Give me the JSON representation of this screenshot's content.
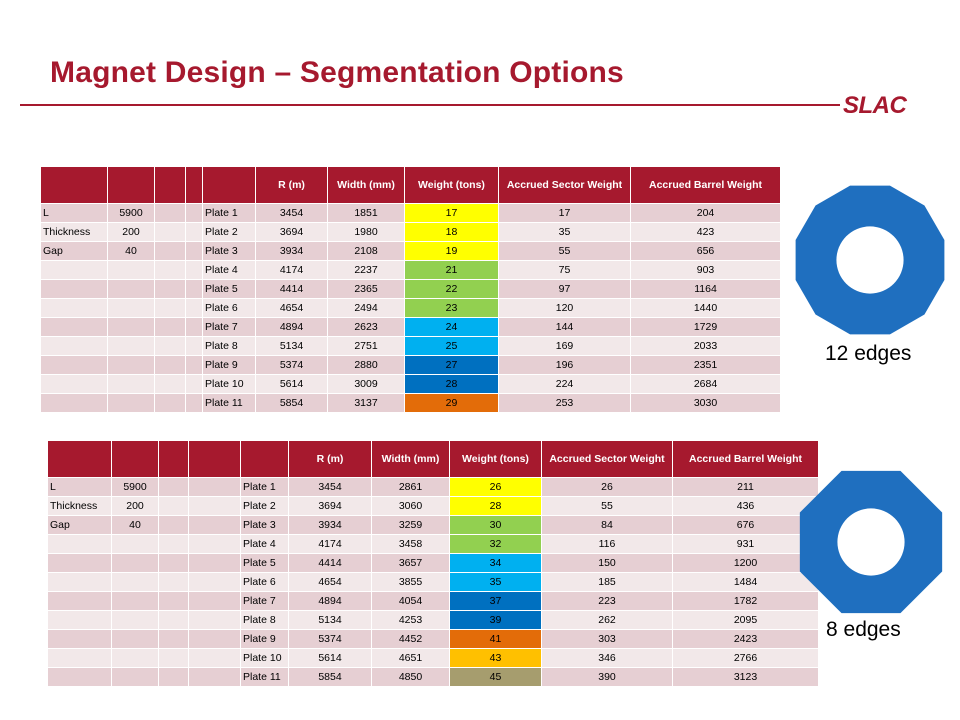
{
  "title": "Magnet Design – Segmentation Options",
  "logo": "SLAC",
  "colors": {
    "accent": "#a6192e",
    "row_odd": "#e6cfd3",
    "row_even": "#f2e8e9",
    "yellow": "#ffff00",
    "light_green": "#92d050",
    "light_blue": "#00b0f0",
    "blue": "#0070c0",
    "orange": "#e36c09",
    "amber": "#ffc000",
    "tan": "#a69d6e",
    "shape_blue": "#1f6fbf"
  },
  "headers": [
    "",
    "",
    "",
    "",
    "",
    "R (m)",
    "Width (mm)",
    "Weight (tons)",
    "Accrued  Sector Weight",
    "Accrued  Barrel Weight"
  ],
  "table12": {
    "rows": [
      [
        "L",
        "5900",
        "",
        "Plate 1",
        "3454",
        "1851",
        "17",
        "17",
        "204"
      ],
      [
        "Thickness",
        "200",
        "",
        "Plate 2",
        "3694",
        "1980",
        "18",
        "35",
        "423"
      ],
      [
        "Gap",
        "40",
        "",
        "Plate 3",
        "3934",
        "2108",
        "19",
        "55",
        "656"
      ],
      [
        "",
        "",
        "",
        "Plate 4",
        "4174",
        "2237",
        "21",
        "75",
        "903"
      ],
      [
        "",
        "",
        "",
        "Plate 5",
        "4414",
        "2365",
        "22",
        "97",
        "1164"
      ],
      [
        "",
        "",
        "",
        "Plate 6",
        "4654",
        "2494",
        "23",
        "120",
        "1440"
      ],
      [
        "",
        "",
        "",
        "Plate 7",
        "4894",
        "2623",
        "24",
        "144",
        "1729"
      ],
      [
        "",
        "",
        "",
        "Plate 8",
        "5134",
        "2751",
        "25",
        "169",
        "2033"
      ],
      [
        "",
        "",
        "",
        "Plate 9",
        "5374",
        "2880",
        "27",
        "196",
        "2351"
      ],
      [
        "",
        "",
        "",
        "Plate 10",
        "5614",
        "3009",
        "28",
        "224",
        "2684"
      ],
      [
        "",
        "",
        "",
        "Plate 11",
        "5854",
        "3137",
        "29",
        "253",
        "3030"
      ]
    ],
    "weight_colors": [
      "#ffff00",
      "#ffff00",
      "#ffff00",
      "#92d050",
      "#92d050",
      "#92d050",
      "#00b0f0",
      "#00b0f0",
      "#0070c0",
      "#0070c0",
      "#e36c09"
    ],
    "edge_label": "12 edges",
    "sides": 12
  },
  "table8": {
    "rows": [
      [
        "L",
        "5900",
        "",
        "Plate 1",
        "3454",
        "2861",
        "26",
        "26",
        "211"
      ],
      [
        "Thickness",
        "200",
        "",
        "Plate 2",
        "3694",
        "3060",
        "28",
        "55",
        "436"
      ],
      [
        "Gap",
        "40",
        "",
        "Plate 3",
        "3934",
        "3259",
        "30",
        "84",
        "676"
      ],
      [
        "",
        "",
        "",
        "Plate 4",
        "4174",
        "3458",
        "32",
        "116",
        "931"
      ],
      [
        "",
        "",
        "",
        "Plate 5",
        "4414",
        "3657",
        "34",
        "150",
        "1200"
      ],
      [
        "",
        "",
        "",
        "Plate 6",
        "4654",
        "3855",
        "35",
        "185",
        "1484"
      ],
      [
        "",
        "",
        "",
        "Plate 7",
        "4894",
        "4054",
        "37",
        "223",
        "1782"
      ],
      [
        "",
        "",
        "",
        "Plate 8",
        "5134",
        "4253",
        "39",
        "262",
        "2095"
      ],
      [
        "",
        "",
        "",
        "Plate 9",
        "5374",
        "4452",
        "41",
        "303",
        "2423"
      ],
      [
        "",
        "",
        "",
        "Plate 10",
        "5614",
        "4651",
        "43",
        "346",
        "2766"
      ],
      [
        "",
        "",
        "",
        "Plate 11",
        "5854",
        "4850",
        "45",
        "390",
        "3123"
      ]
    ],
    "weight_colors": [
      "#ffff00",
      "#ffff00",
      "#92d050",
      "#92d050",
      "#00b0f0",
      "#00b0f0",
      "#0070c0",
      "#0070c0",
      "#e36c09",
      "#ffc000",
      "#a69d6e"
    ],
    "edge_label": "8 edges",
    "sides": 8
  }
}
